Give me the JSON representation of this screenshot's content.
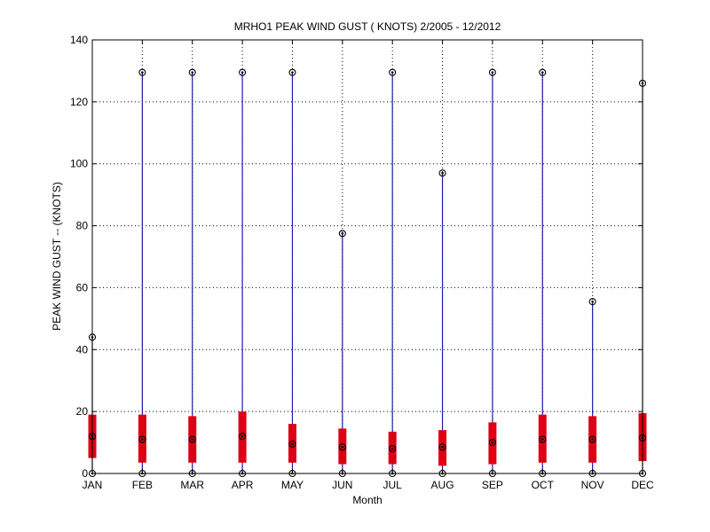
{
  "chart_data": {
    "type": "box",
    "title": "MRHO1  PEAK WIND GUST ( KNOTS) 2/2005 - 12/2012",
    "xlabel": "Month",
    "ylabel": "PEAK WIND GUST -- (KNOTS)",
    "ylim": [
      0,
      140
    ],
    "yticks": [
      0,
      20,
      40,
      60,
      80,
      100,
      120,
      140
    ],
    "grid": true,
    "categories": [
      "JAN",
      "FEB",
      "MAR",
      "APR",
      "MAY",
      "JUN",
      "JUL",
      "AUG",
      "SEP",
      "OCT",
      "NOV",
      "DEC"
    ],
    "min": [
      0,
      0,
      0,
      0,
      0,
      0,
      0,
      0,
      0,
      0,
      0,
      0
    ],
    "q1": [
      5,
      3.5,
      3.5,
      3.5,
      3.5,
      3,
      3,
      2.5,
      3,
      3.5,
      3.5,
      4
    ],
    "median": [
      12,
      11,
      11,
      12,
      9.5,
      8.5,
      8,
      8.5,
      10,
      11,
      11,
      11.5
    ],
    "q3": [
      19,
      19,
      18.5,
      20,
      16,
      14.5,
      13.5,
      14,
      16.5,
      19,
      18.5,
      19.5
    ],
    "max": [
      44,
      129.5,
      129.5,
      129.5,
      129.5,
      77.5,
      129.5,
      97,
      129.5,
      129.5,
      55.5,
      126
    ],
    "colors": {
      "box": "#dd0015",
      "whisker": "#1f1fa8",
      "marker": "#000000",
      "grid": "#000000",
      "axis": "#000000"
    }
  }
}
